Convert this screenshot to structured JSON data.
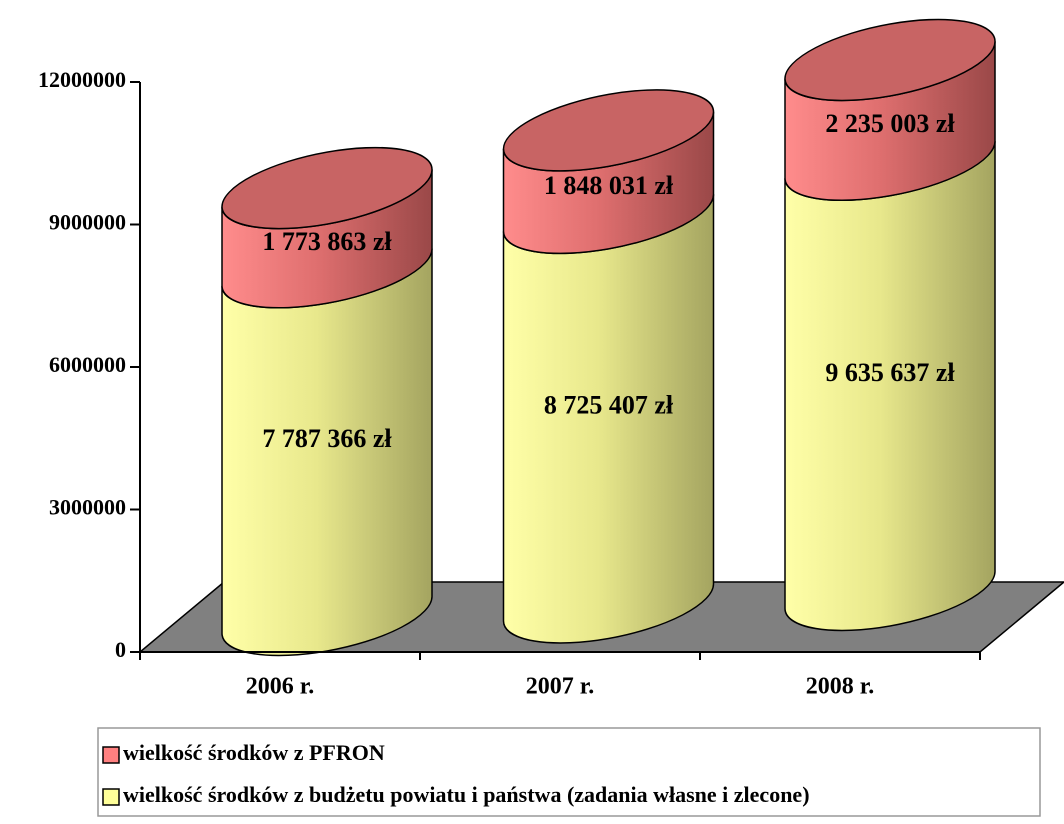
{
  "chart_data": {
    "type": "cylinder-stacked",
    "categories": [
      "2006 r.",
      "2007 r.",
      "2008 r."
    ],
    "series": [
      {
        "name": "wielkość środków z budżetu powiatu i państwa (zadania własne i zlecone)",
        "color": "#ffff99",
        "values": [
          7787366,
          8725407,
          9635637
        ],
        "value_labels": [
          "7 787 366 zł",
          "8 725 407 zł",
          "9 635 637 zł"
        ]
      },
      {
        "name": "wielkość środków z PFRON",
        "color": "#ff8080",
        "values": [
          1773863,
          1848031,
          2235003
        ],
        "value_labels": [
          "1 773 863 zł",
          "1 848 031 zł",
          "2 235 003 zł"
        ]
      }
    ],
    "ylim": [
      0,
      12000000
    ],
    "yticks": [
      0,
      3000000,
      6000000,
      9000000,
      12000000
    ],
    "stacked": true,
    "legend": "bottom"
  }
}
